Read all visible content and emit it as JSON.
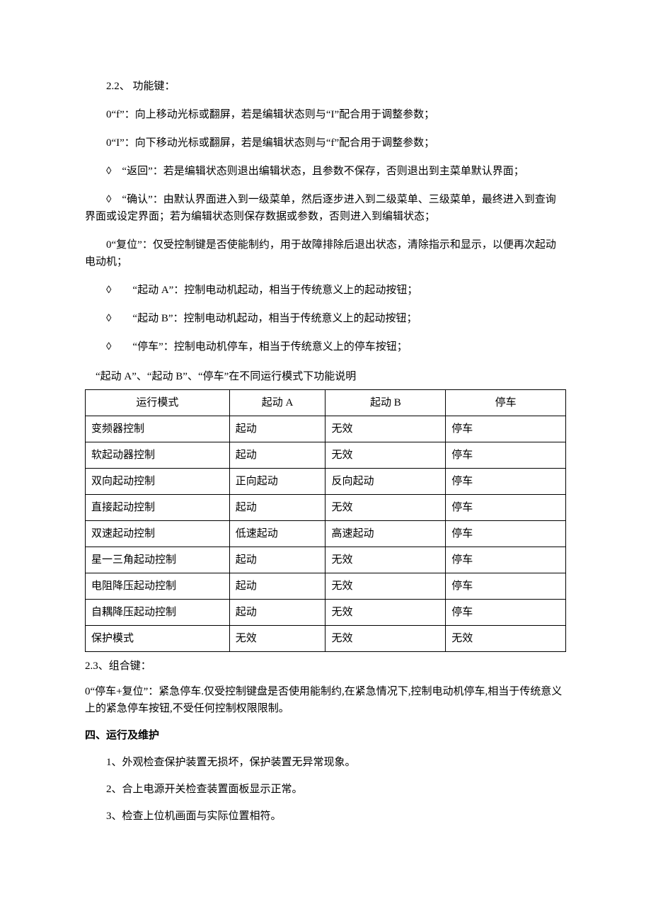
{
  "paragraphs": {
    "p1": "2.2、 功能键：",
    "p2": "0“f”：向上移动光标或翻屏，若是编辑状态则与“I”配合用于调整参数；",
    "p3": "0“I”：向下移动光标或翻屏，若是编辑状态则与“f”配合用于调整参数；",
    "p4": "◊　“返回”：若是编辑状态则退出编辑状态，且参数不保存，否则退出到主菜单默认界面；",
    "p5": "◊　“确认”：由默认界面进入到一级菜单，然后逐步进入到二级菜单、三级菜单，最终进入到查询界面或设定界面；若为编辑状态则保存数据或参数，否则进入到编辑状态；",
    "p6": "0“复位”：仅受控制键是否使能制约，用于故障排除后退出状态，清除指示和显示，以便再次起动电动机；",
    "p7": "◊　　“起动 A”：控制电动机起动，相当于传统意义上的起动按钮；",
    "p8": "◊　　“起动 B”：控制电动机起动，相当于传统意义上的起动按钮；",
    "p9": "◊　　“停车”：控制电动机停车，相当于传统意义上的停车按钮；",
    "table_caption": "“起动 A”、“起动 B”、“停车”在不同运行模式下功能说明",
    "p10": "2.3、组合键：",
    "p11": "0“停车+复位”：紧急停车.仅受控制键盘是否使用能制约,在紧急情况下,控制电动机停车,相当于传统意义上的紧急停车按钮,不受任何控制权限限制。",
    "section4": "四、运行及维护",
    "item1": "1、外观检查保护装置无损坏，保护装置无异常现象。",
    "item2": "2、合上电源开关检查装置面板显示正常。",
    "item3": "3、检查上位机画面与实际位置相符。"
  },
  "table": {
    "headers": [
      "运行模式",
      "起动 A",
      "起动 B",
      "停车"
    ],
    "rows": [
      [
        "变频器控制",
        "起动",
        "无效",
        "停车"
      ],
      [
        "软起动器控制",
        "起动",
        "无效",
        "停车"
      ],
      [
        "双向起动控制",
        "正向起动",
        "反向起动",
        "停车"
      ],
      [
        "直接起动控制",
        "起动",
        "无效",
        "停车"
      ],
      [
        "双速起动控制",
        "低速起动",
        "高速起动",
        "停车"
      ],
      [
        "星一三角起动控制",
        "起动",
        "无效",
        "停车"
      ],
      [
        "电阻降压起动控制",
        "起动",
        "无效",
        "停车"
      ],
      [
        "自耦降压起动控制",
        "起动",
        "无效",
        "停车"
      ],
      [
        "保护模式",
        "无效",
        "无效",
        "无效"
      ]
    ],
    "col_widths": [
      "30%",
      "20%",
      "25%",
      "25%"
    ]
  }
}
